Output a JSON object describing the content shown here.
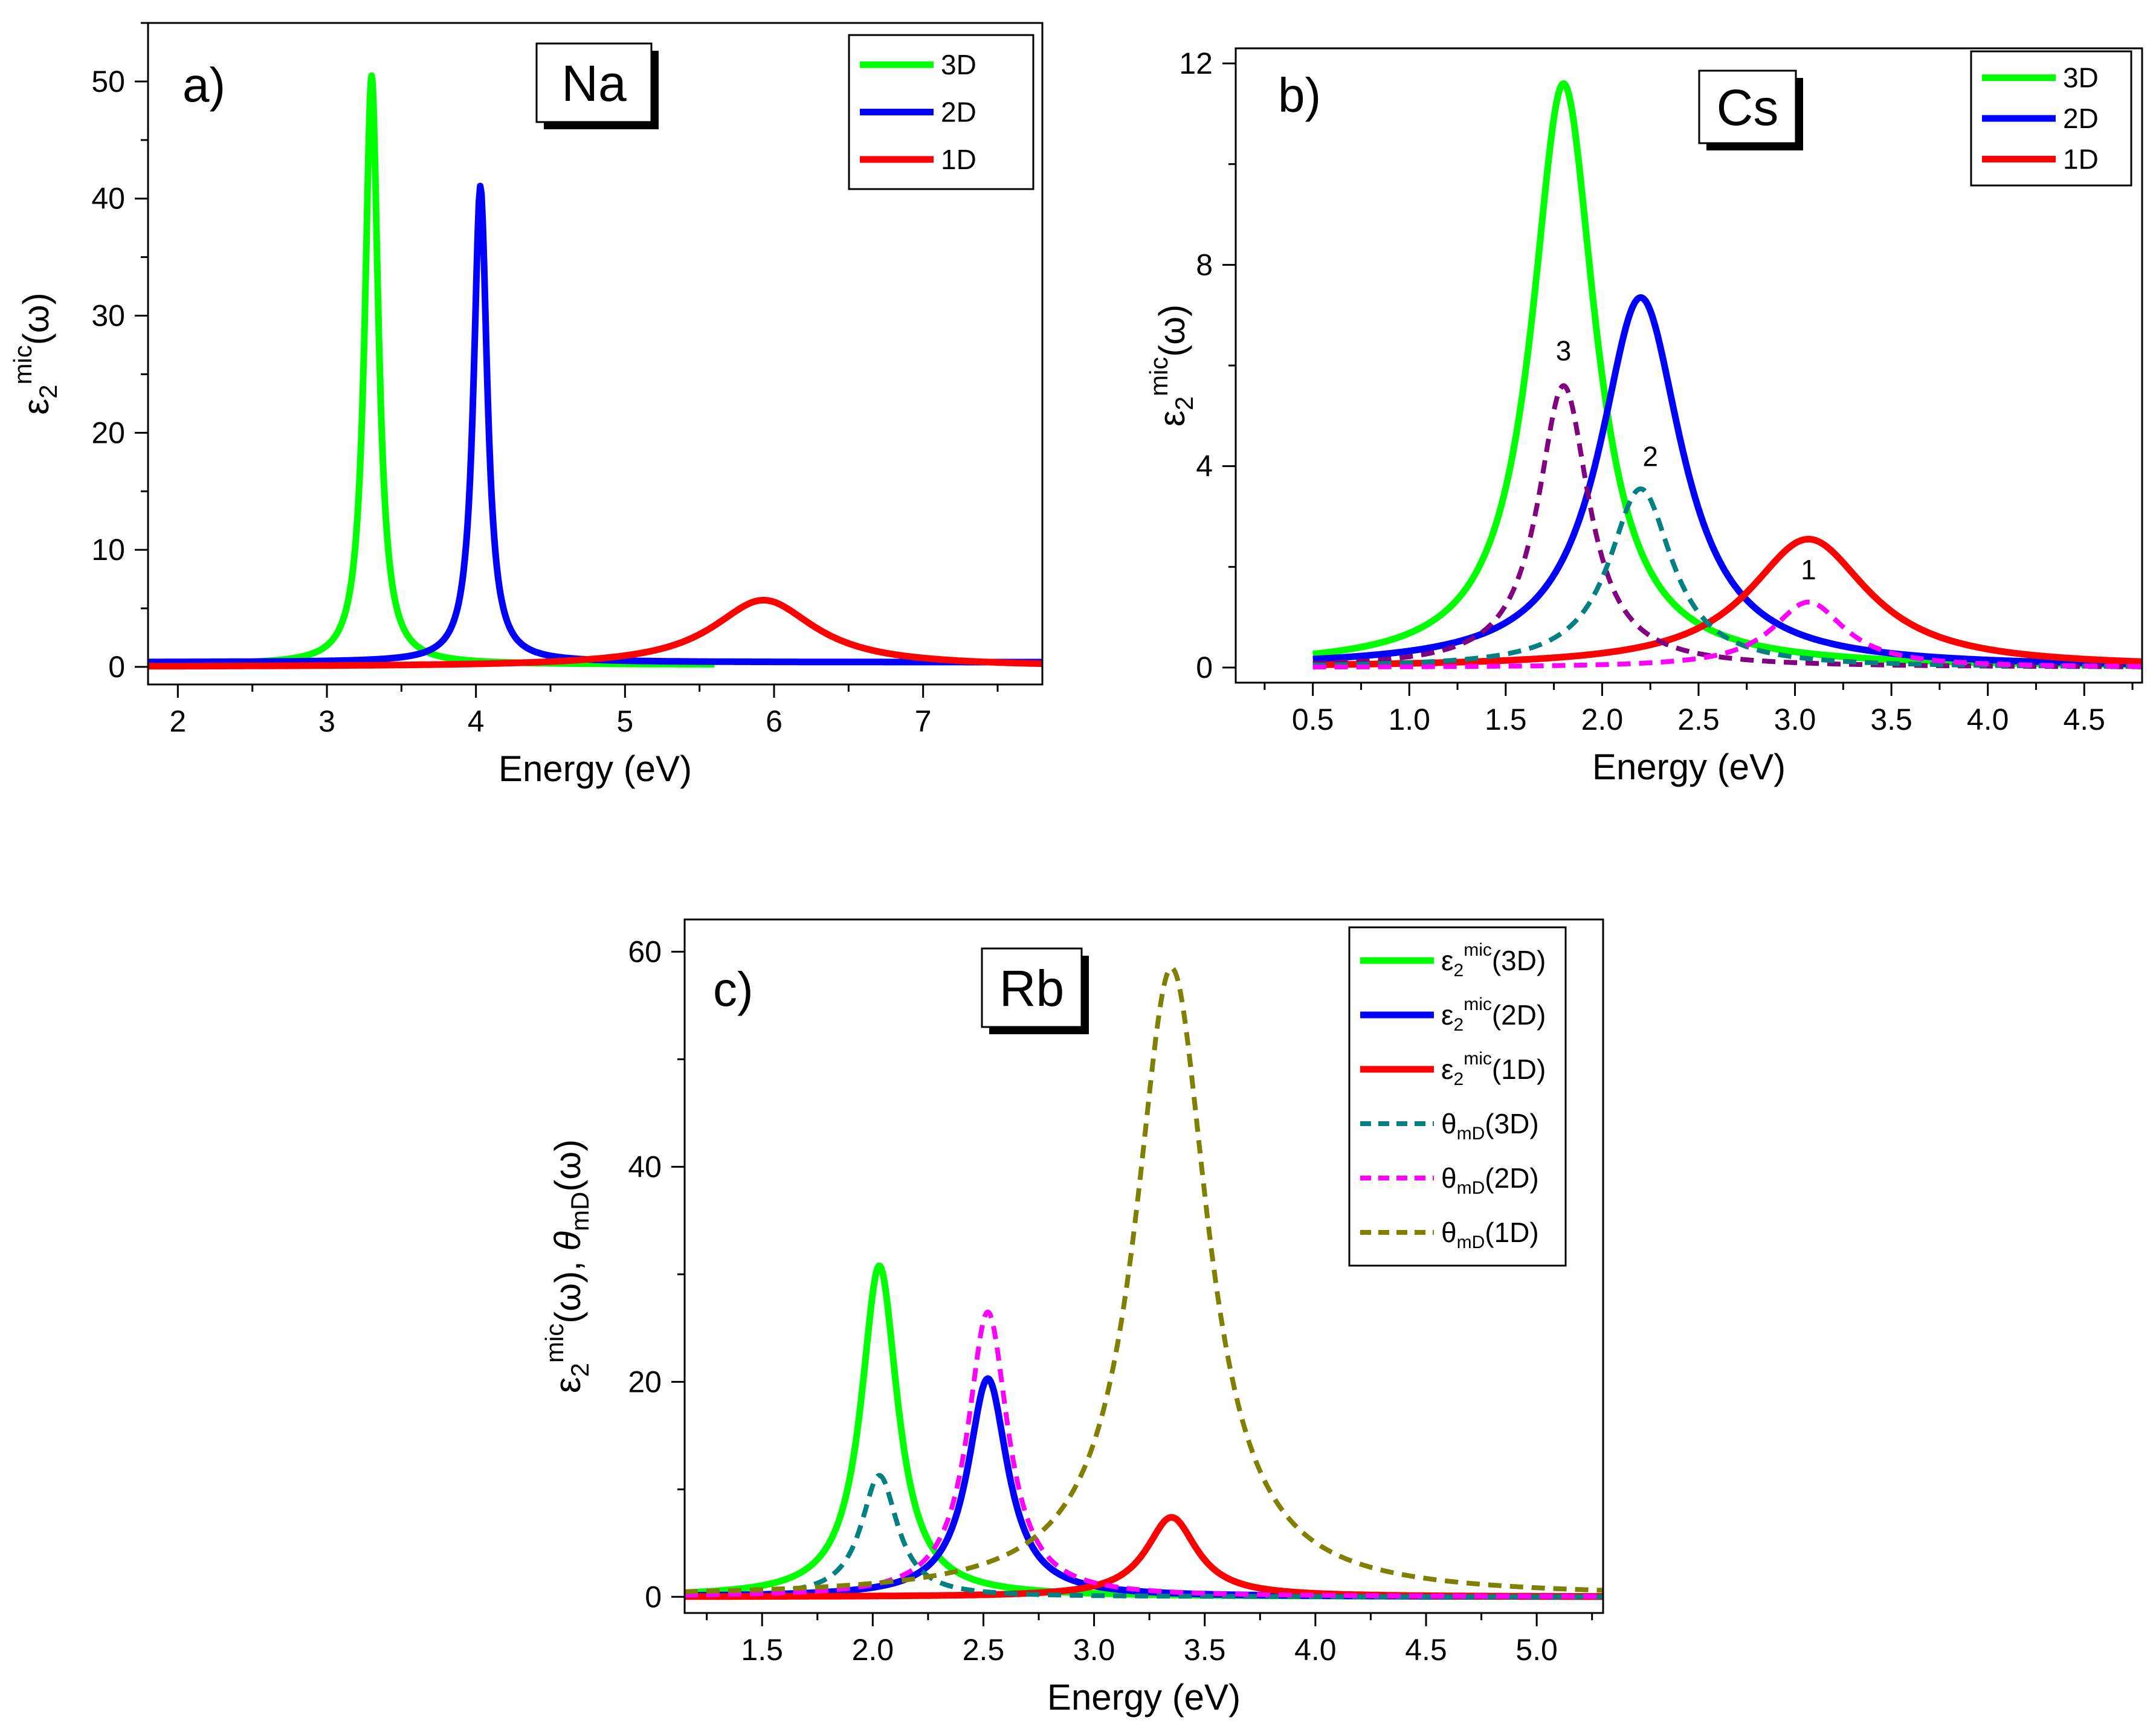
{
  "figure": {
    "panels": [
      {
        "panel_label": "a)",
        "element": "Na",
        "xlabel": "Energy (eV)",
        "ylabel": "ε",
        "ylabel_sub": "2",
        "ylabel_sup": "mic",
        "ylabel_rest": "(ω)",
        "extra_ylabel": ""
      },
      {
        "panel_label": "b)",
        "element": "Cs",
        "xlabel": "Energy (eV)",
        "ylabel": "ε",
        "ylabel_sub": "2",
        "ylabel_sup": "mic",
        "ylabel_rest": "(ω)",
        "extra_ylabel": ""
      },
      {
        "panel_label": "c)",
        "element": "Rb",
        "xlabel": "Energy (eV)",
        "ylabel": "ε",
        "ylabel_sub": "2",
        "ylabel_sup": "mic",
        "ylabel_rest": "(ω), ",
        "extra_ylabel": "θ",
        "extra_sub": "mD",
        "extra_rest": "(ω)"
      }
    ]
  },
  "chart_data": [
    {
      "type": "line",
      "title": "Na",
      "panel_label": "a)",
      "xlabel": "Energy (eV)",
      "ylabel": "ε2mic(ω)",
      "xlim": [
        1.8,
        7.8
      ],
      "ylim": [
        -1.5,
        55
      ],
      "xticks": [
        2,
        3,
        4,
        5,
        6,
        7
      ],
      "xtick_labels": [
        "2",
        "3",
        "4",
        "5",
        "6",
        "7"
      ],
      "yticks": [
        0,
        10,
        20,
        30,
        40,
        50
      ],
      "ytick_labels": [
        "0",
        "10",
        "20",
        "30",
        "40",
        "50"
      ],
      "legend_position": "top-right",
      "series": [
        {
          "name": "3D",
          "label": "3D",
          "color": "#00ff00",
          "dashed": false,
          "peak": 3.3,
          "height": 50.3,
          "width": 0.055,
          "base": 0.2,
          "x_start": 2.1,
          "x_end": 5.6
        },
        {
          "name": "2D",
          "label": "2D",
          "color": "#0000ff",
          "dashed": false,
          "peak": 4.03,
          "height": 40.7,
          "width": 0.055,
          "base": 0.4,
          "x_start": 1.8,
          "x_end": 7.8
        },
        {
          "name": "1D",
          "label": "1D",
          "color": "#ff0000",
          "dashed": false,
          "peak": 5.93,
          "height": 5.7,
          "width": 0.42,
          "base": 0.0,
          "x_start": 1.8,
          "x_end": 7.8
        }
      ],
      "annotations": []
    },
    {
      "type": "line",
      "title": "Cs",
      "panel_label": "b)",
      "xlabel": "Energy (eV)",
      "ylabel": "ε2mic(ω)",
      "xlim": [
        0.1,
        4.8
      ],
      "ylim": [
        -0.3,
        12.3
      ],
      "xticks": [
        0.5,
        1.0,
        1.5,
        2.0,
        2.5,
        3.0,
        3.5,
        4.0,
        4.5
      ],
      "xtick_labels": [
        "0.5",
        "1.0",
        "1.5",
        "2.0",
        "2.5",
        "3.0",
        "3.5",
        "4.0",
        "4.5"
      ],
      "yticks": [
        0,
        4,
        8,
        12
      ],
      "ytick_labels": [
        "0",
        "4",
        "8",
        "12"
      ],
      "legend_position": "top-right",
      "series": [
        {
          "name": "3D",
          "label": "3D",
          "color": "#00ff00",
          "dashed": false,
          "peak": 1.8,
          "height": 11.6,
          "width": 0.2,
          "base": 0.0,
          "x_start": 0.5,
          "x_end": 4.8
        },
        {
          "name": "2D",
          "label": "2D",
          "color": "#0000ff",
          "dashed": false,
          "peak": 2.2,
          "height": 7.35,
          "width": 0.26,
          "base": 0.0,
          "x_start": 0.5,
          "x_end": 4.8
        },
        {
          "name": "1D",
          "label": "1D",
          "color": "#ff0000",
          "dashed": false,
          "peak": 3.07,
          "height": 2.55,
          "width": 0.38,
          "base": 0.0,
          "x_start": 0.5,
          "x_end": 4.8
        },
        {
          "name": "dashed 3",
          "label": "",
          "color": "#800080",
          "dashed": true,
          "peak": 1.8,
          "height": 5.6,
          "width": 0.16,
          "base": 0.0,
          "x_start": 0.5,
          "x_end": 4.8
        },
        {
          "name": "dashed 2",
          "label": "",
          "color": "#008080",
          "dashed": true,
          "peak": 2.2,
          "height": 3.55,
          "width": 0.2,
          "base": 0.0,
          "x_start": 0.5,
          "x_end": 4.8
        },
        {
          "name": "dashed 1",
          "label": "",
          "color": "#ff00ff",
          "dashed": true,
          "peak": 3.07,
          "height": 1.3,
          "width": 0.23,
          "base": 0.0,
          "x_start": 0.5,
          "x_end": 4.8
        }
      ],
      "annotations": [
        {
          "text": "3",
          "x": 1.8,
          "y": 6.1
        },
        {
          "text": "2",
          "x": 2.25,
          "y": 4.0
        },
        {
          "text": "1",
          "x": 3.07,
          "y": 1.75
        }
      ]
    },
    {
      "type": "line",
      "title": "Rb",
      "panel_label": "c)",
      "xlabel": "Energy (eV)",
      "ylabel": "ε2mic(ω), θmD(ω)",
      "xlim": [
        1.15,
        5.3
      ],
      "ylim": [
        -1.5,
        63
      ],
      "xticks": [
        1.5,
        2.0,
        2.5,
        3.0,
        3.5,
        4.0,
        4.5,
        5.0
      ],
      "xtick_labels": [
        "1.5",
        "2.0",
        "2.5",
        "3.0",
        "3.5",
        "4.0",
        "4.5",
        "5.0"
      ],
      "yticks": [
        0,
        20,
        40,
        60
      ],
      "ytick_labels": [
        "0",
        "20",
        "40",
        "60"
      ],
      "legend_position": "top-right",
      "series": [
        {
          "name": "ε2mic(3D)",
          "label_main": "ε",
          "label_sub": "2",
          "label_sup": "mic",
          "label_rest": "(3D)",
          "color": "#00ff00",
          "dashed": false,
          "peak": 2.03,
          "height": 30.8,
          "width": 0.1,
          "base": 0.0,
          "x_start": 1.15,
          "x_end": 5.3
        },
        {
          "name": "ε2mic(2D)",
          "label_main": "ε",
          "label_sub": "2",
          "label_sup": "mic",
          "label_rest": "(2D)",
          "color": "#0000ff",
          "dashed": false,
          "peak": 2.52,
          "height": 20.3,
          "width": 0.11,
          "base": 0.0,
          "x_start": 1.15,
          "x_end": 5.3
        },
        {
          "name": "ε2mic(1D)",
          "label_main": "ε",
          "label_sub": "2",
          "label_sup": "mic",
          "label_rest": "(1D)",
          "color": "#ff0000",
          "dashed": false,
          "peak": 3.35,
          "height": 7.4,
          "width": 0.14,
          "base": 0.0,
          "x_start": 1.15,
          "x_end": 5.3
        },
        {
          "name": "θmD(3D)",
          "label_main": "θ",
          "label_sub": "mD",
          "label_sup": "",
          "label_rest": "(3D)",
          "color": "#008080",
          "dashed": true,
          "peak": 2.03,
          "height": 11.3,
          "width": 0.1,
          "base": 0.0,
          "x_start": 1.15,
          "x_end": 5.3
        },
        {
          "name": "θmD(2D)",
          "label_main": "θ",
          "label_sub": "mD",
          "label_sup": "",
          "label_rest": "(2D)",
          "color": "#ff00ff",
          "dashed": true,
          "peak": 2.52,
          "height": 26.5,
          "width": 0.11,
          "base": 0.0,
          "x_start": 1.15,
          "x_end": 5.3
        },
        {
          "name": "θmD(1D)",
          "label_main": "θ",
          "label_sub": "mD",
          "label_sup": "",
          "label_rest": "(1D)",
          "color": "#808000",
          "dashed": true,
          "peak": 3.35,
          "height": 58.5,
          "width": 0.2,
          "base": 0.0,
          "x_start": 1.15,
          "x_end": 5.3
        }
      ],
      "annotations": []
    }
  ]
}
